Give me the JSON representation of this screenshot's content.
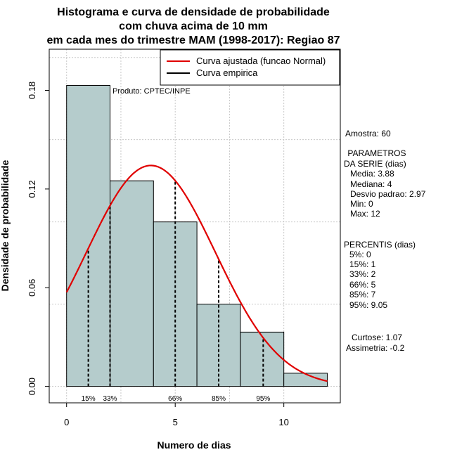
{
  "chart_data": {
    "type": "bar",
    "title_lines": [
      "Histograma e curva de densidade de probabilidade",
      "com chuva acima de 10 mm",
      "em cada mes do trimestre MAM (1998-2017): Regiao 87"
    ],
    "xlabel": "Numero de dias",
    "ylabel": "Densidade de probabilidade",
    "xlim": [
      -0.8,
      12.6
    ],
    "ylim": [
      -0.01,
      0.205
    ],
    "xticks": [
      0,
      5,
      10
    ],
    "yticks": [
      0.0,
      0.06,
      0.12,
      0.18
    ],
    "ytick_labels": [
      "0.00",
      "0.06",
      "0.12",
      "0.18"
    ],
    "grid": true,
    "bins": [
      {
        "start": 0,
        "end": 2,
        "density": 0.183
      },
      {
        "start": 2,
        "end": 4,
        "density": 0.125
      },
      {
        "start": 4,
        "end": 6,
        "density": 0.1
      },
      {
        "start": 6,
        "end": 8,
        "density": 0.05
      },
      {
        "start": 8,
        "end": 10,
        "density": 0.033
      },
      {
        "start": 10,
        "end": 12,
        "density": 0.008
      }
    ],
    "bar_color": "#b5cccc",
    "normal_curve": {
      "mean": 3.88,
      "sd": 2.97,
      "color": "#e00000",
      "x_from": 0,
      "x_to": 12
    },
    "percentile_lines": [
      {
        "x": 1,
        "label": "15%"
      },
      {
        "x": 2,
        "label": "33%"
      },
      {
        "x": 5,
        "label": "66%"
      },
      {
        "x": 7,
        "label": "85%"
      },
      {
        "x": 9.05,
        "label": "95%"
      }
    ],
    "legend": {
      "position": "top-right",
      "entries": [
        {
          "label": "Curva ajustada (funcao Normal)",
          "color": "#e00000"
        },
        {
          "label": "Curva empirica",
          "color": "#000000"
        }
      ]
    },
    "annotation": "Produto: CPTEC/INPE"
  },
  "stats": {
    "amostra": "Amostra: 60",
    "param_title_1": " PARAMETROS",
    "param_title_2": "DA SERIE (dias)",
    "media": "Media: 3.88",
    "mediana": "Mediana: 4",
    "desvio": "Desvio padrao: 2.97",
    "min": "Min: 0",
    "max": "Max: 12",
    "percentis_title": "PERCENTIS (dias)",
    "p5": "5%: 0",
    "p15": "15%: 1",
    "p33": "33%: 2",
    "p66": "66%: 5",
    "p85": "85%: 7",
    "p95": "95%: 9.05",
    "curtose": "Curtose: 1.07",
    "assimetria": "Assimetria: -0.2"
  }
}
